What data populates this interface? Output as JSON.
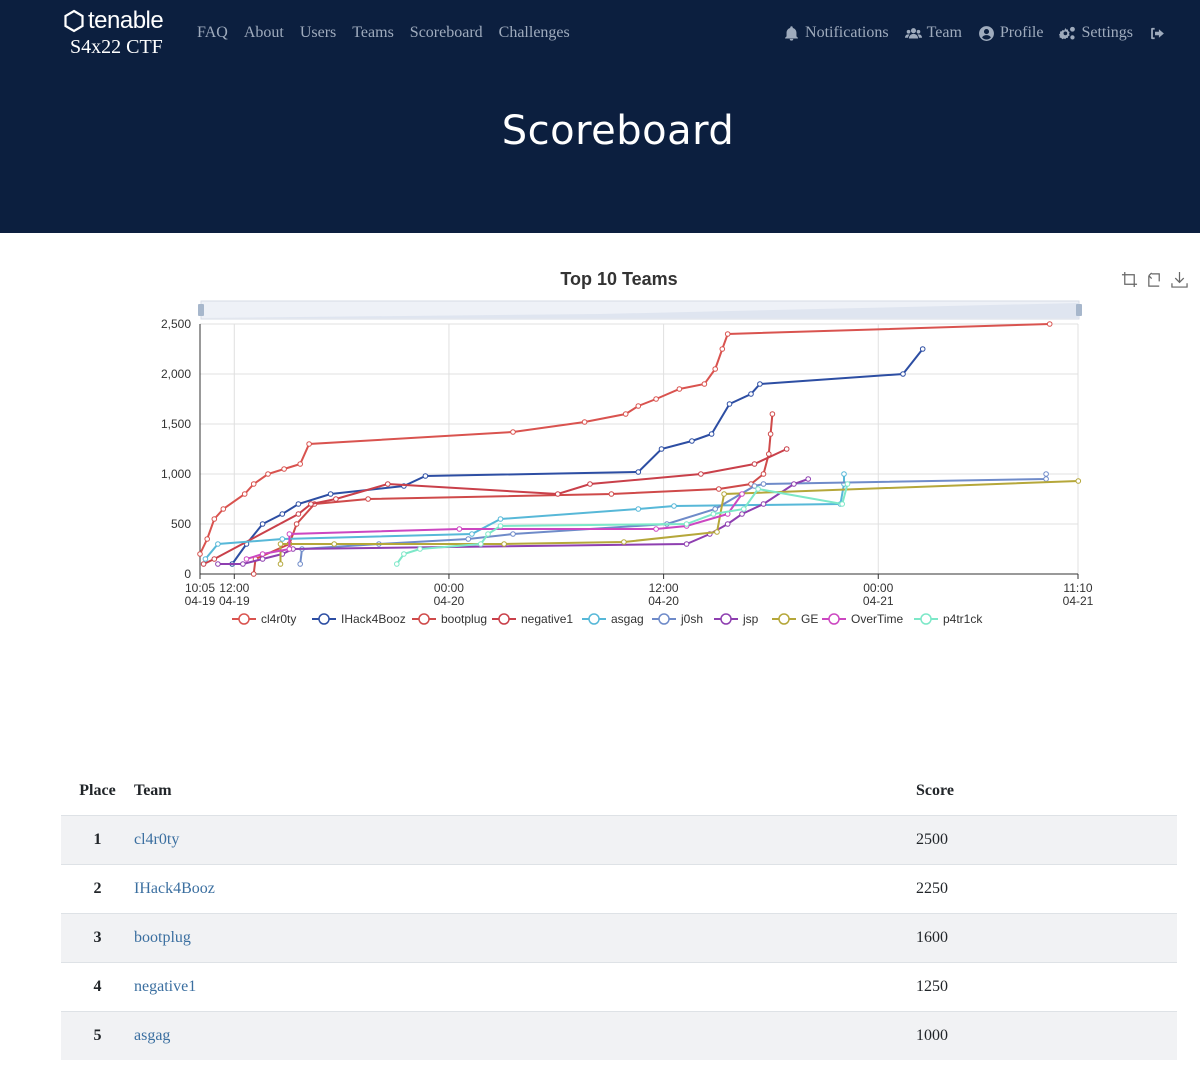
{
  "nav": {
    "brand_word": "tenable",
    "brand_sub": "S4x22 CTF",
    "left_links": [
      "FAQ",
      "About",
      "Users",
      "Teams",
      "Scoreboard",
      "Challenges"
    ],
    "notifications": "Notifications",
    "team": "Team",
    "profile": "Profile",
    "settings": "Settings"
  },
  "page_title": "Scoreboard",
  "chart_data": {
    "type": "line",
    "title": "Top 10 Teams",
    "x_ticks": [
      {
        "t": 0,
        "top": "10:05",
        "bottom": "04-19"
      },
      {
        "t": 1.917,
        "top": "12:00",
        "bottom": "04-19"
      },
      {
        "t": 13.917,
        "top": "00:00",
        "bottom": "04-20"
      },
      {
        "t": 25.917,
        "top": "12:00",
        "bottom": "04-20"
      },
      {
        "t": 37.917,
        "top": "00:00",
        "bottom": "04-21"
      },
      {
        "t": 49.083,
        "top": "11:10",
        "bottom": "04-21"
      }
    ],
    "xlim": [
      0,
      49.083
    ],
    "ylim": [
      0,
      2500
    ],
    "y_ticks": [
      "0",
      "500",
      "1,000",
      "1,500",
      "2,000",
      "2,500"
    ],
    "y_tick_values": [
      0,
      500,
      1000,
      1500,
      2000,
      2500
    ],
    "grid": true,
    "legend": "bottom",
    "series": [
      {
        "name": "cl4r0ty",
        "color": "#d9534f",
        "points": [
          [
            0,
            200
          ],
          [
            0.4,
            350
          ],
          [
            0.8,
            550
          ],
          [
            1.3,
            650
          ],
          [
            2.5,
            800
          ],
          [
            3,
            900
          ],
          [
            3.8,
            1000
          ],
          [
            4.7,
            1050
          ],
          [
            5.6,
            1100
          ],
          [
            6.1,
            1300
          ],
          [
            17.5,
            1420
          ],
          [
            21.5,
            1520
          ],
          [
            23.8,
            1600
          ],
          [
            24.5,
            1680
          ],
          [
            25.5,
            1750
          ],
          [
            26.8,
            1850
          ],
          [
            28.2,
            1900
          ],
          [
            28.8,
            2050
          ],
          [
            29.2,
            2250
          ],
          [
            29.5,
            2400
          ],
          [
            47.5,
            2500
          ]
        ]
      },
      {
        "name": "IHack4Booz",
        "color": "#2d4ea3",
        "points": [
          [
            1.8,
            100
          ],
          [
            2.6,
            300
          ],
          [
            3.5,
            500
          ],
          [
            4.6,
            600
          ],
          [
            5.5,
            700
          ],
          [
            7.3,
            800
          ],
          [
            11.4,
            880
          ],
          [
            12.6,
            980
          ],
          [
            24.5,
            1020
          ],
          [
            25.8,
            1250
          ],
          [
            27.5,
            1330
          ],
          [
            28.6,
            1400
          ],
          [
            29.6,
            1700
          ],
          [
            30.8,
            1800
          ],
          [
            31.3,
            1900
          ],
          [
            39.3,
            2000
          ],
          [
            40.4,
            2250
          ]
        ]
      },
      {
        "name": "bootplug",
        "color": "#cf4a4a",
        "points": [
          [
            3,
            0
          ],
          [
            3.1,
            150
          ],
          [
            5,
            300
          ],
          [
            5.4,
            500
          ],
          [
            6.4,
            700
          ],
          [
            9.4,
            750
          ],
          [
            23,
            800
          ],
          [
            29,
            850
          ],
          [
            30.8,
            900
          ],
          [
            31.5,
            1000
          ],
          [
            31.8,
            1200
          ],
          [
            31.9,
            1400
          ],
          [
            32,
            1600
          ]
        ]
      },
      {
        "name": "negative1",
        "color": "#c9404a",
        "points": [
          [
            0.2,
            100
          ],
          [
            0.8,
            150
          ],
          [
            5.5,
            600
          ],
          [
            6.2,
            700
          ],
          [
            7.6,
            750
          ],
          [
            10.5,
            900
          ],
          [
            20,
            800
          ],
          [
            21.8,
            900
          ],
          [
            28,
            1000
          ],
          [
            31,
            1100
          ],
          [
            32.8,
            1250
          ]
        ]
      },
      {
        "name": "asgag",
        "color": "#57b8d8",
        "points": [
          [
            0.3,
            150
          ],
          [
            1,
            300
          ],
          [
            4.6,
            350
          ],
          [
            15.2,
            400
          ],
          [
            16.8,
            550
          ],
          [
            24.5,
            650
          ],
          [
            26.5,
            680
          ],
          [
            35.8,
            700
          ],
          [
            36,
            900
          ],
          [
            36,
            1000
          ]
        ]
      },
      {
        "name": "j0sh",
        "color": "#6f8bc9",
        "points": [
          [
            5.6,
            100
          ],
          [
            5.7,
            250
          ],
          [
            10,
            300
          ],
          [
            15,
            350
          ],
          [
            17.5,
            400
          ],
          [
            26.1,
            500
          ],
          [
            28.8,
            650
          ],
          [
            31,
            880
          ],
          [
            31.5,
            900
          ],
          [
            47.3,
            950
          ],
          [
            47.3,
            1000
          ]
        ]
      },
      {
        "name": "jsp",
        "color": "#8e3fb0",
        "points": [
          [
            1,
            100
          ],
          [
            2.4,
            100
          ],
          [
            3.5,
            150
          ],
          [
            4.6,
            200
          ],
          [
            5.2,
            250
          ],
          [
            27.2,
            300
          ],
          [
            28.5,
            400
          ],
          [
            29.5,
            500
          ],
          [
            30.3,
            600
          ],
          [
            31.5,
            700
          ],
          [
            33.2,
            900
          ],
          [
            34,
            950
          ]
        ]
      },
      {
        "name": "GE",
        "color": "#b5a73a",
        "points": [
          [
            4.5,
            100
          ],
          [
            4.5,
            300
          ],
          [
            7.5,
            300
          ],
          [
            17,
            300
          ],
          [
            23.7,
            320
          ],
          [
            28.9,
            420
          ],
          [
            29.3,
            800
          ],
          [
            49.1,
            930
          ]
        ]
      },
      {
        "name": "OverTime",
        "color": "#cc47c1",
        "points": [
          [
            2.6,
            150
          ],
          [
            3.5,
            200
          ],
          [
            5,
            250
          ],
          [
            5,
            400
          ],
          [
            14.5,
            450
          ],
          [
            25.5,
            450
          ],
          [
            27.2,
            480
          ],
          [
            29.5,
            600
          ],
          [
            30.3,
            800
          ]
        ]
      },
      {
        "name": "p4tr1ck",
        "color": "#7de8c8",
        "points": [
          [
            11,
            100
          ],
          [
            11.4,
            200
          ],
          [
            12.3,
            250
          ],
          [
            15.7,
            300
          ],
          [
            16.1,
            400
          ],
          [
            16.8,
            480
          ],
          [
            27.2,
            500
          ],
          [
            28.7,
            600
          ],
          [
            30.4,
            650
          ],
          [
            31.2,
            850
          ],
          [
            35.9,
            700
          ],
          [
            36.2,
            900
          ]
        ]
      }
    ]
  },
  "table": {
    "headers": {
      "place": "Place",
      "team": "Team",
      "score": "Score"
    },
    "rows": [
      {
        "place": "1",
        "team": "cl4r0ty",
        "score": "2500"
      },
      {
        "place": "2",
        "team": "IHack4Booz",
        "score": "2250"
      },
      {
        "place": "3",
        "team": "bootplug",
        "score": "1600"
      },
      {
        "place": "4",
        "team": "negative1",
        "score": "1250"
      },
      {
        "place": "5",
        "team": "asgag",
        "score": "1000"
      }
    ]
  }
}
